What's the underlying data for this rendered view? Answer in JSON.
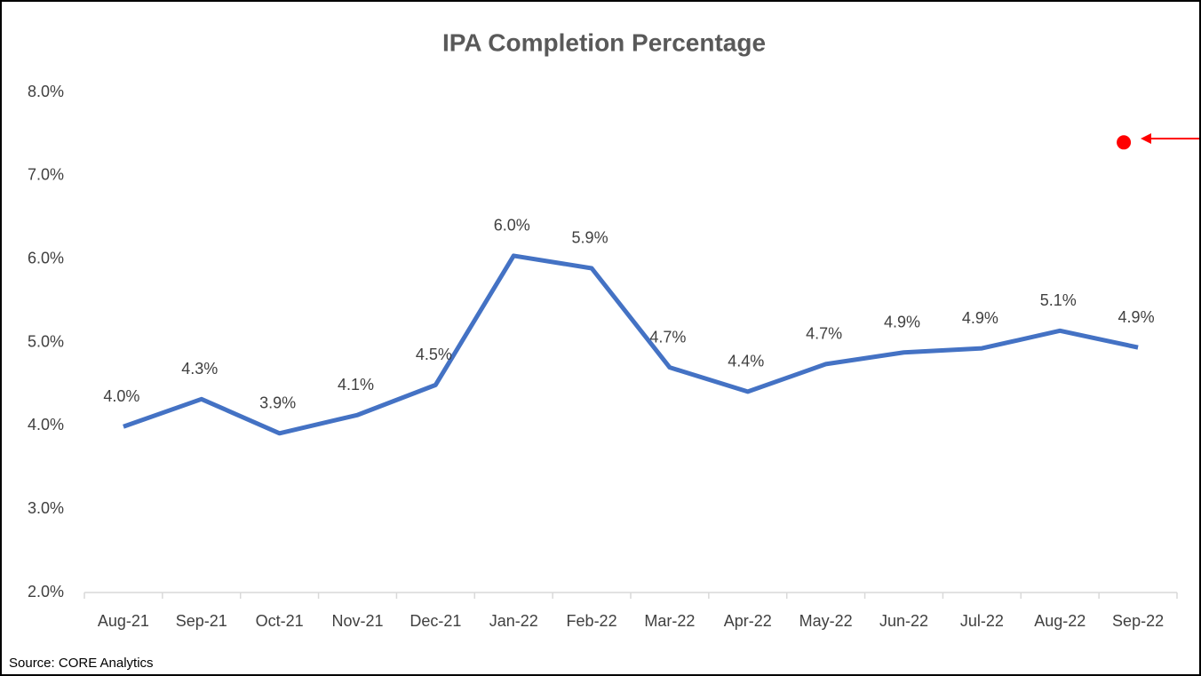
{
  "chart_data": {
    "type": "line",
    "title": "IPA Completion Percentage",
    "categories": [
      "Aug-21",
      "Sep-21",
      "Oct-21",
      "Nov-21",
      "Dec-21",
      "Jan-22",
      "Feb-22",
      "Mar-22",
      "Apr-22",
      "May-22",
      "Jun-22",
      "Jul-22",
      "Aug-22",
      "Sep-22"
    ],
    "values": [
      3.99,
      4.32,
      3.91,
      4.13,
      4.49,
      6.04,
      5.89,
      4.7,
      4.41,
      4.74,
      4.88,
      4.93,
      5.14,
      4.94
    ],
    "value_labels": [
      "4.0%",
      "4.3%",
      "3.9%",
      "4.1%",
      "4.5%",
      "6.0%",
      "5.9%",
      "4.7%",
      "4.4%",
      "4.7%",
      "4.9%",
      "4.9%",
      "5.1%",
      "4.9%"
    ],
    "color": "#4472c4",
    "highlight": {
      "value": 7.4,
      "color": "#ff0000"
    },
    "ylim": [
      2,
      8
    ],
    "yticks": [
      {
        "value": 2,
        "label": "2.0%"
      },
      {
        "value": 3,
        "label": "3.0%"
      },
      {
        "value": 4,
        "label": "4.0%"
      },
      {
        "value": 5,
        "label": "5.0%"
      },
      {
        "value": 6,
        "label": "6.0%"
      },
      {
        "value": 7,
        "label": "7.0%"
      },
      {
        "value": 8,
        "label": "8.0%"
      }
    ],
    "grid": false,
    "source": "Source:  CORE Analytics"
  }
}
